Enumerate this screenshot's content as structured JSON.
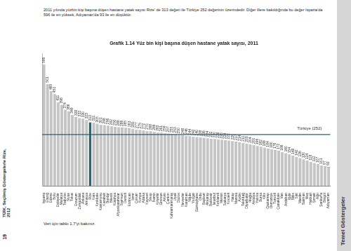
{
  "page": {
    "intro": "2011 yılında yüzbin kişi başına düşen hastane yatak sayısı Rize' de 313 değeri ile Türkiye 252 değerinin üzerindedir. Diğer illere bakıldığında bu değer Isparta'da 596 ile en yüksek, Adıyaman'da 93 ile en düşüktür.",
    "note": "Veri için tablo 1.7'yi bakınız.",
    "side_text": "TÜİK, Seçilmiş Göstergelerle Rize, 2012",
    "page_number": "19",
    "section": "Temel Göstergeler"
  },
  "chart_data": {
    "type": "bar",
    "title": "Grafik 1.14 Yüz bin kişi başına düşen hastane yatak sayısı, 2011",
    "categories": [
      "Isparta",
      "Elazığ",
      "Edirne",
      "Bolu",
      "Eskişehir",
      "Malatya",
      "Trabzon",
      "Sivas",
      "Tokat",
      "Erzurum",
      "Zonguldak",
      "Ankara",
      "Amasya",
      "Rize",
      "Kars",
      "Kırıkkale",
      "Kastamonu",
      "Karabük",
      "Burdur",
      "Bilecik",
      "Kütahya",
      "Afyonkarahisar",
      "Samsun",
      "Denizli",
      "Erzincan",
      "İzmir",
      "Çorum",
      "Konya",
      "Adana",
      "Kayseri",
      "Sinop",
      "Bartın",
      "Kırşehir",
      "Giresun",
      "Artvin",
      "Çankırı",
      "Kahramanmaraş",
      "Uşak",
      "Düzce",
      "Nevşehir",
      "Karaman",
      "Niğde",
      "Yozgat",
      "Gümüşhane",
      "Ordu",
      "Bayburt",
      "Aksaray",
      "Balıkesir",
      "İstanbul",
      "Kırklareli",
      "Mersin",
      "Sakarya",
      "Kocaeli",
      "Hatay",
      "Manisa",
      "Aydın",
      "Tekirdağ",
      "Diyarbakır",
      "Muğla",
      "Antalya",
      "Yalova",
      "Bursa",
      "Kilis",
      "Gaziantep",
      "Osmaniye",
      "Tunceli",
      "Çanakkale",
      "Van",
      "Ardahan",
      "Iğdır",
      "Bitlis",
      "Siirt",
      "Mardin",
      "Batman",
      "Muş",
      "Hakkari",
      "Şırnak",
      "Ağrı",
      "Şanlıurfa",
      "Bingöl",
      "Adıyaman"
    ],
    "values": [
      596,
      501,
      465,
      451,
      411,
      398,
      374,
      366,
      349,
      338,
      333,
      330,
      323,
      313,
      311,
      305,
      301,
      298,
      296,
      292,
      290,
      288,
      286,
      285,
      283,
      280,
      277,
      275,
      272,
      270,
      268,
      266,
      263,
      261,
      259,
      257,
      255,
      253,
      250,
      248,
      246,
      244,
      242,
      240,
      238,
      236,
      234,
      232,
      230,
      228,
      226,
      224,
      222,
      220,
      217,
      214,
      211,
      208,
      204,
      200,
      196,
      192,
      188,
      184,
      180,
      176,
      172,
      166,
      160,
      154,
      148,
      142,
      136,
      130,
      124,
      118,
      112,
      107,
      101,
      97,
      93
    ],
    "colors": [
      "#c4c4c4",
      "#c4c4c4",
      "#c4c4c4",
      "#c4c4c4",
      "#c4c4c4",
      "#c4c4c4",
      "#c4c4c4",
      "#c4c4c4",
      "#c4c4c4",
      "#c4c4c4",
      "#c4c4c4",
      "#c4c4c4",
      "#c4c4c4",
      "#1d6673",
      "#c4c4c4",
      "#c4c4c4",
      "#c4c4c4",
      "#c4c4c4",
      "#c4c4c4",
      "#c4c4c4",
      "#c4c4c4",
      "#c4c4c4",
      "#c4c4c4",
      "#c4c4c4",
      "#c4c4c4",
      "#c4c4c4",
      "#c4c4c4",
      "#c4c4c4",
      "#c4c4c4",
      "#c4c4c4",
      "#c4c4c4",
      "#c4c4c4",
      "#c4c4c4",
      "#c4c4c4",
      "#c4c4c4",
      "#c4c4c4",
      "#c4c4c4",
      "#c4c4c4",
      "#c4c4c4",
      "#c4c4c4",
      "#c4c4c4",
      "#c4c4c4",
      "#c4c4c4",
      "#c4c4c4",
      "#c4c4c4",
      "#c4c4c4",
      "#c4c4c4",
      "#c4c4c4",
      "#c4c4c4",
      "#c4c4c4",
      "#c4c4c4",
      "#c4c4c4",
      "#c4c4c4",
      "#c4c4c4",
      "#c4c4c4",
      "#c4c4c4",
      "#c4c4c4",
      "#c4c4c4",
      "#c4c4c4",
      "#c4c4c4",
      "#c4c4c4",
      "#c4c4c4",
      "#c4c4c4",
      "#c4c4c4",
      "#c4c4c4",
      "#c4c4c4",
      "#c4c4c4",
      "#c4c4c4",
      "#c4c4c4",
      "#c4c4c4",
      "#c4c4c4",
      "#c4c4c4",
      "#c4c4c4",
      "#c4c4c4",
      "#c4c4c4",
      "#c4c4c4",
      "#c4c4c4",
      "#c4c4c4",
      "#c4c4c4",
      "#c4c4c4",
      "#c4c4c4"
    ],
    "reference_line": {
      "value": 252,
      "label": "Türkiye (252)",
      "color": "#1d6673"
    },
    "ylim": [
      0,
      650
    ],
    "grid": false,
    "data_labels": true,
    "tick_labels": "x"
  }
}
